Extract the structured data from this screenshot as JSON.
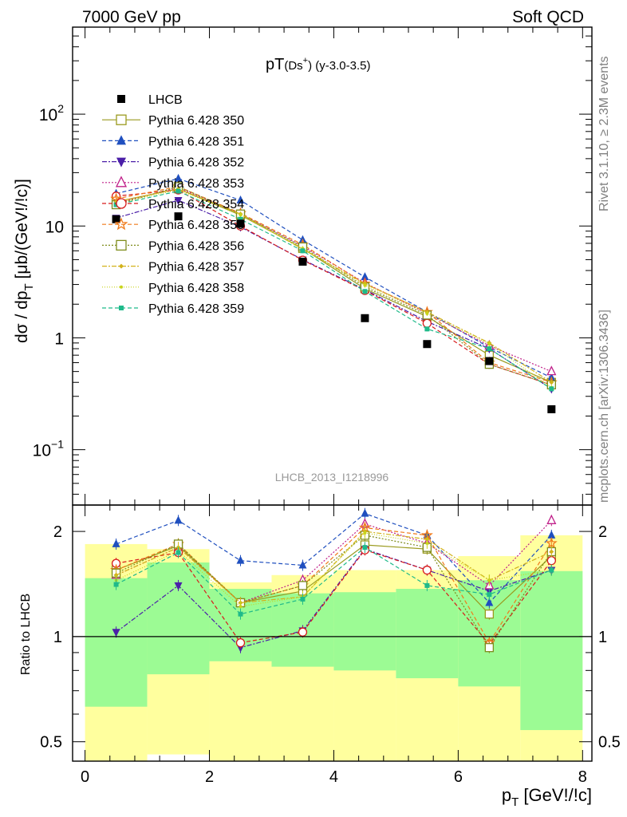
{
  "header": {
    "left": "7000 GeV pp",
    "right": "Soft QCD"
  },
  "side_labels": {
    "rivet": "Rivet 3.1.10, ≥ 2.3M events",
    "mcplots": "mcplots.cern.ch [arXiv:1306.3436]"
  },
  "chart_data": [
    {
      "panel": "main",
      "type": "scatter",
      "title_main": "pT",
      "title_sub": "(Ds",
      "title_sup": "+",
      "title_rest": ") (y-3.0-3.5)",
      "ylabel_main": "dσ / dp",
      "ylabel_sub": "T",
      "ylabel_rest": " [μb/(GeV!/!c)]",
      "watermark": "LHCB_2013_I1218996",
      "yscale": "log",
      "xlim": [
        -0.2,
        8.15
      ],
      "ylim": [
        0.032,
        600
      ],
      "y_tick_labels": [
        {
          "value": 0.1,
          "base": "10",
          "exp": "−1"
        },
        {
          "value": 1,
          "base": "1",
          "exp": ""
        },
        {
          "value": 10,
          "base": "10",
          "exp": ""
        },
        {
          "value": 100,
          "base": "10",
          "exp": "2"
        }
      ],
      "x": [
        0.5,
        1.5,
        2.5,
        3.5,
        4.5,
        5.5,
        6.5,
        7.5
      ],
      "data_series": {
        "name": "LHCB",
        "values": [
          11.5,
          12.2,
          10.5,
          4.8,
          1.5,
          0.88,
          0.62,
          0.23
        ]
      },
      "series": [
        {
          "name": "Pythia 6.428 350",
          "color": "#9a9a1e",
          "dash": "",
          "marker": "square-open",
          "values": [
            16.5,
            21.5,
            12.5,
            6.3,
            2.75,
            1.55,
            0.7,
            0.4
          ]
        },
        {
          "name": "Pythia 6.428 351",
          "color": "#1f4fbf",
          "dash": "5,3",
          "marker": "triangle-up",
          "values": [
            19.5,
            26.5,
            17.0,
            7.5,
            3.5,
            1.7,
            0.82,
            0.44
          ]
        },
        {
          "name": "Pythia 6.428 352",
          "color": "#4b1fa8",
          "dash": "6,2,2,2",
          "marker": "triangle-down",
          "values": [
            11.8,
            17.0,
            9.8,
            5.0,
            2.7,
            1.4,
            0.8,
            0.35
          ]
        },
        {
          "name": "Pythia 6.428 353",
          "color": "#c0208a",
          "dash": "2,2",
          "marker": "triangle-open",
          "values": [
            16.0,
            22.0,
            12.8,
            6.6,
            3.1,
            1.65,
            0.85,
            0.5
          ]
        },
        {
          "name": "Pythia 6.428 354",
          "color": "#d81b1b",
          "dash": "5,3",
          "marker": "circle-open",
          "values": [
            18.5,
            21.0,
            10.0,
            4.95,
            2.65,
            1.35,
            0.58,
            0.38
          ]
        },
        {
          "name": "Pythia 6.428 355",
          "color": "#f07a1a",
          "dash": "5,3",
          "marker": "star-open",
          "values": [
            17.5,
            22.5,
            13.0,
            6.8,
            3.05,
            1.7,
            0.6,
            0.4
          ]
        },
        {
          "name": "Pythia 6.428 356",
          "color": "#7f8c1c",
          "dash": "2,2",
          "marker": "square-open",
          "values": [
            15.5,
            22.5,
            12.8,
            6.5,
            2.85,
            1.6,
            0.58,
            0.38
          ]
        },
        {
          "name": "Pythia 6.428 357",
          "color": "#d2b21a",
          "dash": "6,2,2,2",
          "marker": "diamond-small",
          "values": [
            16.5,
            21.5,
            12.8,
            6.2,
            3.05,
            1.7,
            0.9,
            0.4
          ]
        },
        {
          "name": "Pythia 6.428 358",
          "color": "#c8d41a",
          "dash": "1,2",
          "marker": "dot-small",
          "values": [
            16.0,
            21.0,
            12.6,
            6.3,
            2.95,
            1.65,
            0.88,
            0.36
          ]
        },
        {
          "name": "Pythia 6.428 359",
          "color": "#1fba8a",
          "dash": "5,3",
          "marker": "square-filled",
          "values": [
            15.5,
            20.5,
            11.5,
            6.0,
            2.6,
            1.2,
            0.8,
            0.35
          ]
        }
      ]
    },
    {
      "panel": "ratio",
      "type": "scatter",
      "ylabel": "Ratio to LHCB",
      "yscale": "log",
      "xlabel_main": "p",
      "xlabel_sub": "T",
      "xlabel_rest": " [GeV!/!c]",
      "xlim": [
        -0.2,
        8.15
      ],
      "ylim": [
        0.44,
        2.38
      ],
      "x_ticks": [
        0,
        2,
        4,
        6,
        8
      ],
      "y_ticks": [
        0.5,
        1,
        2
      ],
      "x": [
        0.5,
        1.5,
        2.5,
        3.5,
        4.5,
        5.5,
        6.5,
        7.5
      ],
      "band_edges": [
        0,
        1,
        2,
        3,
        4,
        5,
        6,
        7,
        8
      ],
      "band_outer": {
        "color": "#ffff9e",
        "lo": [
          0.35,
          0.46,
          0.35,
          0.35,
          0.35,
          0.41,
          0.41,
          0.35
        ],
        "hi": [
          1.84,
          1.78,
          1.43,
          1.5,
          1.55,
          1.55,
          1.7,
          1.95
        ]
      },
      "band_inner": {
        "color": "#9cfb94",
        "lo": [
          0.63,
          0.78,
          0.85,
          0.82,
          0.8,
          0.76,
          0.72,
          0.54
        ],
        "hi": [
          1.47,
          1.63,
          1.37,
          1.33,
          1.34,
          1.37,
          1.45,
          1.54
        ]
      },
      "series": [
        {
          "name": "Pythia 6.428 350",
          "values": [
            1.55,
            1.82,
            1.25,
            1.35,
            1.83,
            1.78,
            1.16,
            1.7
          ]
        },
        {
          "name": "Pythia 6.428 351",
          "values": [
            1.84,
            2.15,
            1.65,
            1.6,
            2.25,
            1.95,
            1.25,
            1.95
          ]
        },
        {
          "name": "Pythia 6.428 352",
          "values": [
            1.03,
            1.4,
            0.93,
            1.04,
            1.78,
            1.55,
            1.35,
            1.55
          ]
        },
        {
          "name": "Pythia 6.428 353",
          "values": [
            1.5,
            1.8,
            1.25,
            1.45,
            2.1,
            1.85,
            1.4,
            2.15
          ]
        },
        {
          "name": "Pythia 6.428 354",
          "values": [
            1.62,
            1.74,
            0.96,
            1.03,
            1.77,
            1.55,
            0.95,
            1.65
          ]
        },
        {
          "name": "Pythia 6.428 355",
          "values": [
            1.55,
            1.84,
            1.25,
            1.4,
            2.05,
            1.95,
            0.96,
            1.85
          ]
        },
        {
          "name": "Pythia 6.428 356",
          "values": [
            1.52,
            1.84,
            1.25,
            1.4,
            1.95,
            1.8,
            0.93,
            1.75
          ]
        },
        {
          "name": "Pythia 6.428 357",
          "values": [
            1.5,
            1.8,
            1.25,
            1.3,
            2.0,
            1.9,
            1.45,
            1.75
          ]
        },
        {
          "name": "Pythia 6.428 358",
          "values": [
            1.45,
            1.76,
            1.22,
            1.3,
            1.98,
            1.85,
            1.45,
            1.55
          ]
        },
        {
          "name": "Pythia 6.428 359",
          "values": [
            1.41,
            1.74,
            1.16,
            1.28,
            1.8,
            1.4,
            1.32,
            1.55
          ]
        }
      ]
    }
  ]
}
